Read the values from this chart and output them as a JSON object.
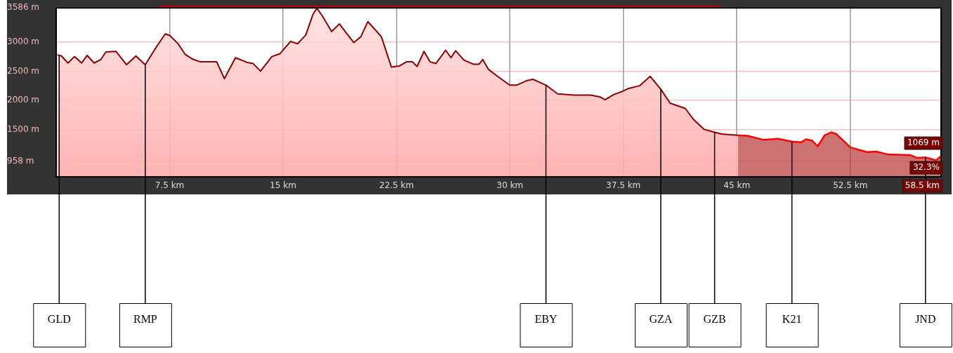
{
  "chart_data": {
    "type": "area",
    "xlim": [
      0,
      58.5
    ],
    "ylim": [
      686,
      3586
    ],
    "xticks": [
      {
        "value": 7.5,
        "label": "7.5 km"
      },
      {
        "value": 15,
        "label": "15 km"
      },
      {
        "value": 22.5,
        "label": "22.5 km"
      },
      {
        "value": 30,
        "label": "30 km"
      },
      {
        "value": 37.5,
        "label": "37.5 km"
      },
      {
        "value": 45,
        "label": "45 km"
      },
      {
        "value": 52.5,
        "label": "52.5 km"
      }
    ],
    "yticks": [
      {
        "value": 958,
        "label": "958 m"
      },
      {
        "value": 1500,
        "label": "1500 m"
      },
      {
        "value": 2000,
        "label": "2000 m"
      },
      {
        "value": 2500,
        "label": "2500 m"
      },
      {
        "value": 3000,
        "label": "3000 m"
      },
      {
        "value": 3586,
        "label": "3586 m"
      }
    ],
    "grid": true,
    "legend": false,
    "series": [
      {
        "color": "#8b0000",
        "x": [
          0.08,
          0.35,
          0.78,
          1.21,
          1.68,
          2.05,
          2.51,
          2.95,
          3.29,
          3.95,
          4.65,
          5.27,
          5.89,
          6.51,
          7.21,
          7.52,
          8.06,
          8.52,
          8.99,
          9.53,
          10.61,
          11.12,
          11.85,
          12.63,
          13.02,
          13.51,
          14.26,
          14.8,
          15.49,
          15.96,
          16.5,
          16.97,
          17.23,
          17.59,
          18.21,
          18.72,
          19.67,
          20.14,
          20.6,
          21.23,
          21.5,
          22.16,
          22.7,
          23.16,
          23.55,
          23.86,
          24.32,
          24.71,
          25.1,
          25.75,
          26.1,
          26.41,
          26.96,
          27.57,
          27.96,
          28.2,
          28.58,
          29.13,
          29.98,
          30.44,
          31.14,
          31.52,
          32.38,
          33.15,
          34.24,
          35.32,
          35.94,
          36.28,
          36.87,
          37.41,
          37.8,
          38.57,
          39.27,
          39.97,
          40.59,
          41.59,
          42.14,
          42.84,
          43.53,
          44.0,
          45.08
        ],
        "values": [
          2780,
          2760,
          2640,
          2750,
          2640,
          2770,
          2640,
          2700,
          2830,
          2840,
          2610,
          2760,
          2610,
          2870,
          3140,
          3110,
          2970,
          2790,
          2710,
          2660,
          2660,
          2370,
          2730,
          2650,
          2630,
          2500,
          2750,
          2800,
          3010,
          2970,
          3120,
          3470,
          3580,
          3450,
          3180,
          3310,
          2990,
          3090,
          3350,
          3170,
          3090,
          2570,
          2590,
          2660,
          2660,
          2580,
          2840,
          2660,
          2630,
          2860,
          2730,
          2850,
          2690,
          2620,
          2620,
          2700,
          2530,
          2420,
          2260,
          2260,
          2340,
          2360,
          2260,
          2110,
          2090,
          2090,
          2060,
          2010,
          2100,
          2150,
          2200,
          2250,
          2410,
          2190,
          1950,
          1860,
          1670,
          1500,
          1450,
          1420,
          1400
        ]
      },
      {
        "color": "#ff0000",
        "x": [
          45.08,
          45.7,
          46.78,
          47.71,
          48.64,
          49.26,
          49.57,
          49.96,
          50.34,
          50.81,
          51.25,
          51.58,
          52.51,
          53.6,
          54.22,
          54.99,
          56.46,
          56.93,
          57.47,
          58.17,
          58.48
        ],
        "values": [
          1400,
          1390,
          1320,
          1340,
          1290,
          1280,
          1330,
          1310,
          1210,
          1400,
          1450,
          1420,
          1190,
          1110,
          1120,
          1070,
          1060,
          1010,
          1020,
          970,
          1040
        ]
      }
    ],
    "annotations": [
      {
        "text": "GLD",
        "x": 0.2
      },
      {
        "text": "RMP",
        "x": 5.89
      },
      {
        "text": "EBY",
        "x": 32.38
      },
      {
        "text": "GZA",
        "x": 39.97
      },
      {
        "text": "GZB",
        "x": 43.53
      },
      {
        "text": "K21",
        "x": 48.64
      },
      {
        "text": "JND",
        "x": 57.47
      },
      "1069 m",
      "32.3%",
      "58.5 km"
    ]
  }
}
